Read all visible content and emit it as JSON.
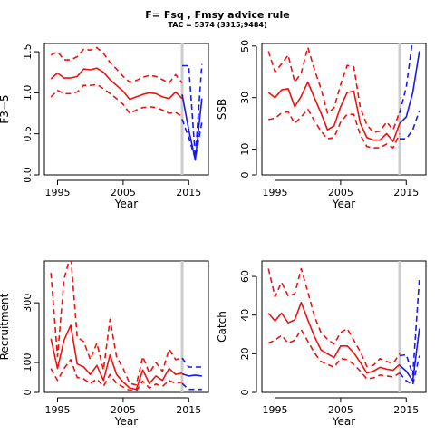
{
  "figure": {
    "title": "F= Fsq , Fmsy advice rule",
    "subtitle": "TAC = 5374 (3315;9484)",
    "colors": {
      "history": "#ee1111",
      "forecast": "#1a1aee",
      "assessment_line": "#cccccc"
    },
    "assessment_year": 2014
  },
  "chart_data": [
    {
      "id": "fbar",
      "type": "line",
      "title": "",
      "xlabel": "Year",
      "ylabel": "F̄3−5",
      "xlim": [
        1993,
        2018
      ],
      "ylim": [
        0,
        1.6
      ],
      "xticks": [
        1995,
        2005,
        2015
      ],
      "yticks": [
        0.0,
        0.5,
        1.0,
        1.5
      ],
      "ytick_labels": [
        "0.0",
        "0.5",
        "1.0",
        "1.5"
      ],
      "history": {
        "x": [
          1994,
          1995,
          1996,
          1997,
          1998,
          1999,
          2000,
          2001,
          2002,
          2003,
          2004,
          2005,
          2006,
          2007,
          2008,
          2009,
          2010,
          2011,
          2012,
          2013,
          2014
        ],
        "median": [
          1.17,
          1.24,
          1.18,
          1.18,
          1.2,
          1.29,
          1.28,
          1.3,
          1.25,
          1.16,
          1.09,
          1.02,
          0.92,
          0.95,
          0.98,
          1.0,
          0.99,
          0.95,
          0.93,
          1.01,
          0.93
        ],
        "upper": [
          1.46,
          1.5,
          1.4,
          1.4,
          1.44,
          1.53,
          1.52,
          1.55,
          1.48,
          1.37,
          1.29,
          1.2,
          1.13,
          1.15,
          1.19,
          1.21,
          1.2,
          1.16,
          1.12,
          1.22,
          1.12
        ],
        "lower": [
          0.95,
          1.03,
          0.99,
          0.99,
          1.01,
          1.09,
          1.09,
          1.1,
          1.05,
          0.99,
          0.93,
          0.86,
          0.75,
          0.79,
          0.82,
          0.83,
          0.82,
          0.79,
          0.75,
          0.76,
          0.71
        ]
      },
      "forecast": {
        "x": [
          2014,
          2015,
          2016,
          2017
        ],
        "median": [
          0.98,
          0.55,
          0.18,
          0.93
        ],
        "upper": [
          1.33,
          1.33,
          0.22,
          1.35
        ],
        "lower": [
          0.68,
          0.45,
          0.2,
          0.64
        ]
      }
    },
    {
      "id": "ssb",
      "type": "line",
      "title": "",
      "xlabel": "Year",
      "ylabel": "SSB",
      "xlim": [
        1993,
        2018
      ],
      "ylim": [
        0,
        51
      ],
      "xticks": [
        1995,
        2005,
        2015
      ],
      "yticks": [
        0,
        10,
        30,
        50
      ],
      "ytick_labels": [
        "0",
        "10",
        "30",
        "50"
      ],
      "history": {
        "x": [
          1994,
          1995,
          1996,
          1997,
          1998,
          1999,
          2000,
          2001,
          2002,
          2003,
          2004,
          2005,
          2006,
          2007,
          2008,
          2009,
          2010,
          2011,
          2012,
          2013,
          2014
        ],
        "median": [
          32,
          30,
          33,
          33.5,
          26.5,
          30.5,
          36,
          30,
          24,
          17.5,
          19,
          26.5,
          32,
          32.5,
          20,
          14.5,
          13.5,
          13.5,
          16,
          13,
          20
        ],
        "upper": [
          48,
          40,
          43,
          46.5,
          36,
          39.5,
          49.5,
          41,
          33.5,
          24,
          26,
          35,
          42.5,
          42,
          26,
          19.5,
          16.5,
          17,
          20.5,
          17.5,
          24.5
        ],
        "lower": [
          21.5,
          22,
          24,
          24.5,
          20,
          22.5,
          25.5,
          21,
          17,
          14,
          14.5,
          20.5,
          23.5,
          23.5,
          15.5,
          11,
          10.5,
          10.5,
          12,
          10.5,
          16
        ]
      },
      "forecast": {
        "x": [
          2014,
          2015,
          2016,
          2017
        ],
        "median": [
          20,
          22.5,
          32,
          48
        ],
        "upper": [
          24,
          34,
          53,
          60
        ],
        "lower": [
          14,
          14,
          17.5,
          25
        ]
      }
    },
    {
      "id": "recruitment",
      "type": "line",
      "title": "",
      "xlabel": "Year",
      "ylabel": "Recruitment",
      "xlim": [
        1993,
        2018
      ],
      "ylim": [
        0,
        440
      ],
      "xticks": [
        1995,
        2005,
        2015
      ],
      "yticks": [
        0,
        100,
        300
      ],
      "ytick_labels": [
        "0",
        "100",
        "300"
      ],
      "history": {
        "x": [
          1994,
          1995,
          1996,
          1997,
          1998,
          1999,
          2000,
          2001,
          2002,
          2003,
          2004,
          2005,
          2006,
          2007,
          2008,
          2009,
          2010,
          2011,
          2012,
          2013,
          2014
        ],
        "median": [
          180,
          80,
          175,
          225,
          95,
          85,
          60,
          90,
          40,
          125,
          60,
          35,
          15,
          10,
          75,
          30,
          55,
          40,
          80,
          60,
          65
        ],
        "upper": [
          400,
          120,
          380,
          460,
          185,
          170,
          110,
          165,
          75,
          245,
          120,
          80,
          30,
          25,
          120,
          65,
          100,
          70,
          145,
          110,
          115
        ],
        "lower": [
          80,
          40,
          80,
          110,
          50,
          45,
          30,
          45,
          20,
          60,
          30,
          18,
          7,
          5,
          38,
          15,
          28,
          20,
          40,
          30,
          35
        ]
      },
      "forecast": {
        "x": [
          2014,
          2015,
          2016,
          2017
        ],
        "median": [
          62,
          55,
          58,
          55
        ],
        "upper": [
          115,
          85,
          85,
          85
        ],
        "lower": [
          30,
          10,
          10,
          10
        ]
      }
    },
    {
      "id": "catch",
      "type": "line",
      "title": "",
      "xlabel": "Year",
      "ylabel": "Catch",
      "xlim": [
        1993,
        2018
      ],
      "ylim": [
        0,
        68
      ],
      "xticks": [
        1995,
        2005,
        2015
      ],
      "yticks": [
        0,
        20,
        40,
        60
      ],
      "ytick_labels": [
        "0",
        "20",
        "40",
        "60"
      ],
      "history": {
        "x": [
          1994,
          1995,
          1996,
          1997,
          1998,
          1999,
          2000,
          2001,
          2002,
          2003,
          2004,
          2005,
          2006,
          2007,
          2008,
          2009,
          2010,
          2011,
          2012,
          2013,
          2014
        ],
        "median": [
          41,
          37,
          41,
          36,
          37.5,
          46.5,
          37.5,
          29,
          22,
          20,
          18,
          24,
          24,
          20.5,
          15.5,
          10,
          11,
          13,
          12,
          11.5,
          14.5
        ],
        "upper": [
          64,
          49.5,
          57,
          50,
          51,
          64,
          52,
          39.5,
          31,
          27.5,
          25,
          31,
          33,
          27,
          21,
          13.5,
          14,
          17.5,
          16,
          15,
          20
        ],
        "lower": [
          25.5,
          27,
          29.5,
          25.5,
          27,
          32.5,
          26.5,
          20.5,
          16,
          14.5,
          13,
          17.5,
          17,
          14.5,
          11,
          7,
          7.5,
          9,
          8.5,
          8,
          10
        ]
      },
      "forecast": {
        "x": [
          2014,
          2015,
          2016,
          2017
        ],
        "median": [
          14,
          11,
          6,
          33
        ],
        "upper": [
          19,
          19.5,
          9,
          59
        ],
        "lower": [
          10,
          6,
          4,
          19
        ]
      }
    }
  ]
}
